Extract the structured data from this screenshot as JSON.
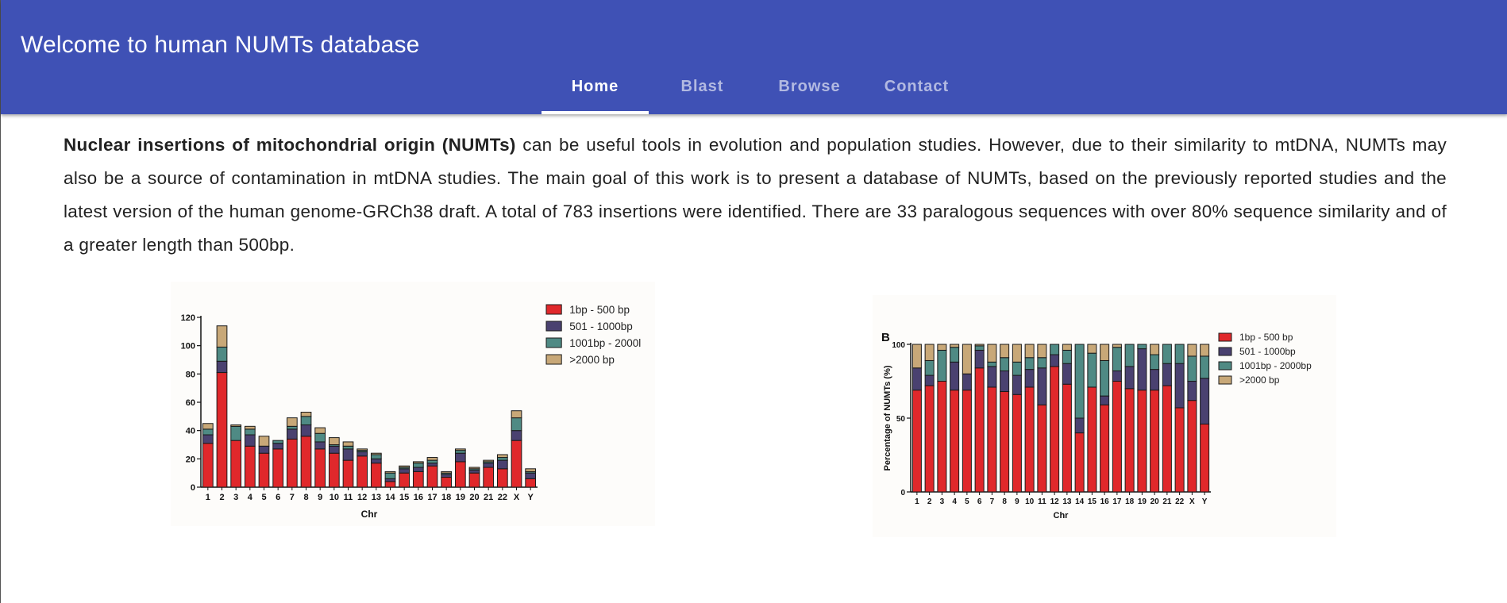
{
  "header": {
    "title": "Welcome to human NUMTs database",
    "tabs": [
      {
        "label": "Home",
        "active": true
      },
      {
        "label": "Blast",
        "active": false
      },
      {
        "label": "Browse",
        "active": false
      },
      {
        "label": "Contact",
        "active": false
      }
    ]
  },
  "intro": {
    "bold": "Nuclear insertions of mitochondrial origin (NUMTs)",
    "text": " can be useful tools in evolution and population studies. However, due to their similarity to mtDNA, NUMTs may also be a source of contamination in mtDNA studies. The main goal of this work is to present a database of NUMTs, based on the previously reported studies and the latest version of the human genome-GRCh38 draft. A total of 783 insertions were identified. There are 33 paralogous sequences with over 80% sequence similarity and of a greater length than 500bp."
  },
  "colors": {
    "brand": "#3f51b5",
    "series": [
      "#e0282b",
      "#4a4170",
      "#4f8a84",
      "#c8a878"
    ]
  },
  "chart_data": [
    {
      "type": "bar",
      "stacked": true,
      "title": "",
      "xlabel": "Chr",
      "ylabel": "",
      "ylim": [
        0,
        120
      ],
      "yticks": [
        0,
        20,
        40,
        60,
        80,
        100,
        120
      ],
      "legend_position": "top-right",
      "categories": [
        "1",
        "2",
        "3",
        "4",
        "5",
        "6",
        "7",
        "8",
        "9",
        "10",
        "11",
        "12",
        "13",
        "14",
        "15",
        "16",
        "17",
        "18",
        "19",
        "20",
        "21",
        "22",
        "X",
        "Y"
      ],
      "series": [
        {
          "name": "1bp - 500 bp",
          "values": [
            31,
            81,
            33,
            29,
            24,
            27,
            34,
            36,
            27,
            24,
            19,
            22,
            17,
            4,
            10,
            11,
            15,
            7,
            18,
            10,
            14,
            13,
            33,
            6
          ]
        },
        {
          "name": "501 - 1000bp",
          "values": [
            6,
            8,
            0,
            8,
            5,
            4,
            7,
            8,
            5,
            5,
            8,
            3,
            3,
            2,
            3,
            3,
            2,
            2,
            6,
            2,
            3,
            6,
            7,
            4
          ]
        },
        {
          "name": "1001bp - 2000l",
          "values": [
            4,
            10,
            10,
            4,
            0,
            2,
            2,
            6,
            6,
            1,
            2,
            1,
            3,
            4,
            1,
            3,
            2,
            1,
            2,
            1,
            1,
            2,
            9,
            1
          ]
        },
        {
          "name": ">2000 bp",
          "values": [
            4,
            15,
            1,
            2,
            7,
            0,
            6,
            3,
            4,
            5,
            3,
            1,
            1,
            1,
            1,
            1,
            2,
            1,
            1,
            1,
            1,
            2,
            5,
            2
          ]
        }
      ]
    },
    {
      "type": "bar",
      "stacked": true,
      "title": "",
      "panel_label": "B",
      "xlabel": "Chr",
      "ylabel": "Percentage of NUMTs (%)",
      "ylim": [
        0,
        100
      ],
      "yticks": [
        0,
        50,
        100
      ],
      "legend_position": "top-right",
      "categories": [
        "1",
        "2",
        "3",
        "4",
        "5",
        "6",
        "7",
        "8",
        "9",
        "10",
        "11",
        "12",
        "13",
        "14",
        "15",
        "16",
        "17",
        "18",
        "19",
        "20",
        "21",
        "22",
        "X",
        "Y"
      ],
      "series": [
        {
          "name": "1bp - 500 bp",
          "values": [
            69,
            72,
            75,
            69,
            69,
            84,
            71,
            68,
            66,
            71,
            59,
            85,
            73,
            40,
            71,
            59,
            75,
            70,
            69,
            69,
            72,
            57,
            62,
            46
          ]
        },
        {
          "name": "501 - 1000bp",
          "values": [
            15,
            7,
            0,
            19,
            11,
            12,
            14,
            14,
            13,
            12,
            25,
            8,
            14,
            10,
            0,
            6,
            7,
            15,
            28,
            14,
            15,
            30,
            13,
            31
          ]
        },
        {
          "name": "1001bp - 2000bp",
          "values": [
            0,
            10,
            21,
            10,
            0,
            3,
            3,
            9,
            9,
            8,
            7,
            7,
            9,
            50,
            23,
            24,
            16,
            15,
            3,
            10,
            13,
            13,
            17,
            15
          ]
        },
        {
          "name": ">2000 bp",
          "values": [
            16,
            11,
            4,
            2,
            20,
            1,
            12,
            9,
            12,
            9,
            9,
            0,
            4,
            0,
            6,
            11,
            2,
            0,
            0,
            7,
            0,
            0,
            8,
            8
          ]
        }
      ]
    }
  ]
}
